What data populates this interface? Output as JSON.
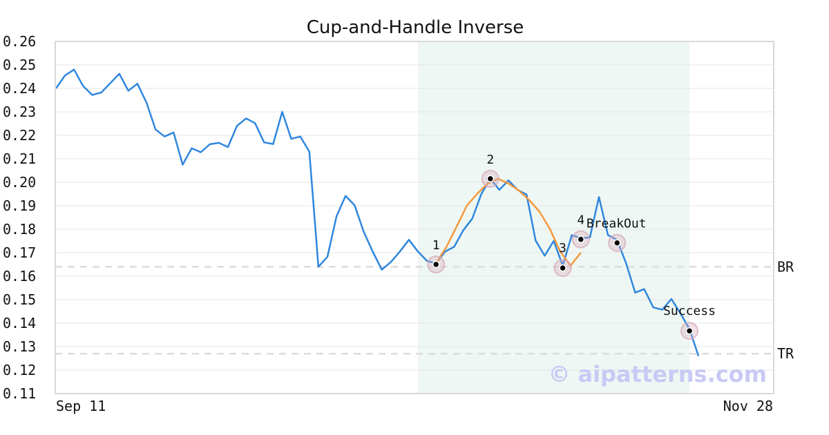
{
  "chart_data": {
    "type": "line",
    "title": "Cup-and-Handle Inverse",
    "xlabel": "",
    "ylabel": "",
    "x_start_label": "Sep 11",
    "x_end_label": "Nov 28",
    "ylim": [
      0.11,
      0.26
    ],
    "ytick_labels": [
      "0.26",
      "0.25",
      "0.24",
      "0.23",
      "0.22",
      "0.21",
      "0.20",
      "0.19",
      "0.18",
      "0.17",
      "0.16",
      "0.15",
      "0.14",
      "0.13",
      "0.12",
      "0.11"
    ],
    "grid": true,
    "series": [
      {
        "color": "#2e86de",
        "values": [
          0.24,
          0.2455,
          0.248,
          0.241,
          0.2372,
          0.2382,
          0.2422,
          0.2462,
          0.239,
          0.242,
          0.234,
          0.2225,
          0.2195,
          0.2212,
          0.2075,
          0.2145,
          0.2128,
          0.2162,
          0.2168,
          0.215,
          0.224,
          0.2272,
          0.2252,
          0.217,
          0.2163,
          0.23,
          0.2185,
          0.2195,
          0.213,
          0.164,
          0.1683,
          0.1855,
          0.1942,
          0.1902,
          0.179,
          0.1705,
          0.1628,
          0.166,
          0.1705,
          0.1755,
          0.1705,
          0.1665,
          0.1655,
          0.1705,
          0.1725,
          0.1795,
          0.1845,
          0.195,
          0.2015,
          0.1968,
          0.2008,
          0.1968,
          0.1948,
          0.1752,
          0.1687,
          0.175,
          0.1645,
          0.1775,
          0.1762,
          0.1765,
          0.1937,
          0.1775,
          0.1755,
          0.1655,
          0.153,
          0.1545,
          0.1467,
          0.1457,
          0.1503,
          0.1442,
          0.1375,
          0.126
        ]
      }
    ],
    "pattern_curve": {
      "color": "#f5993d",
      "values": [
        0.1655,
        0.1725,
        0.1812,
        0.1902,
        0.1952,
        0.1995,
        0.2015,
        0.1995,
        0.1965,
        0.1925,
        0.1875,
        0.1802,
        0.1705,
        0.1645,
        0.17
      ]
    },
    "highlight_region": {
      "start_index": 40,
      "end_index": 70,
      "color": "#eef7f3"
    },
    "points": [
      {
        "label": "1",
        "index": 42,
        "value": 0.165
      },
      {
        "label": "2",
        "index": 48,
        "value": 0.2015
      },
      {
        "label": "3",
        "index": 56,
        "value": 0.1635
      },
      {
        "label": "4",
        "index": 58,
        "value": 0.1757
      },
      {
        "label": "BreakOut",
        "index": 62,
        "value": 0.1742
      },
      {
        "label": "Success",
        "index": 70,
        "value": 0.1367
      }
    ],
    "reference_lines": [
      {
        "label": "BR",
        "value": 0.164
      },
      {
        "label": "TR",
        "value": 0.127
      }
    ],
    "watermark": "© aipatterns.com"
  }
}
